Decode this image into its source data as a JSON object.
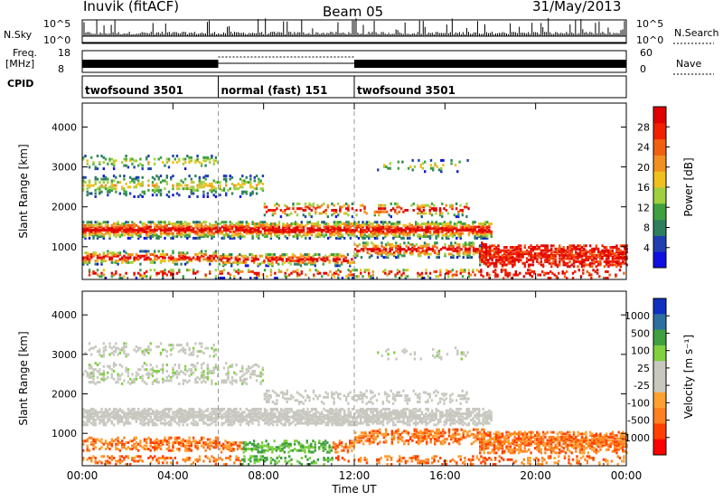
{
  "header": {
    "title": "Inuvik (fitACF)",
    "beam": "Beam 05",
    "date": "31/May/2013"
  },
  "strip_labels": {
    "nsky": "N.Sky",
    "nsky_top": "10^5",
    "nsky_bottom": "10^0",
    "nsearch": "N.Search",
    "nsearch_top": "10^5",
    "nsearch_bottom": "10^0",
    "freq": "Freq.",
    "freq_unit": "[MHz]",
    "freq_top": "18",
    "freq_bottom": "8",
    "nave": "Nave",
    "nave_top": "60",
    "nave_bottom": "0",
    "cpid": "CPID"
  },
  "cpid_segments": [
    {
      "label": "twofsound 3501",
      "start": 0,
      "end": 6
    },
    {
      "label": "normal (fast) 151",
      "start": 6,
      "end": 12
    },
    {
      "label": "twofsound 3501",
      "start": 12,
      "end": 24
    }
  ],
  "colors": {
    "power": [
      "#1010e0",
      "#1f3fb0",
      "#2f7f5f",
      "#40a040",
      "#a0d040",
      "#f0c020",
      "#f09020",
      "#f06010",
      "#f02000",
      "#e00000"
    ],
    "velocity": [
      "#ff0000",
      "#ff4000",
      "#ff8020",
      "#ffa030",
      "#c8c8c0",
      "#c8c8c0",
      "#80d040",
      "#40a040",
      "#2f6f9f",
      "#1030c0"
    ]
  },
  "chart_data": [
    {
      "type": "heatmap",
      "name": "power",
      "xlabel": "",
      "ylabel": "Slant Range [km]",
      "xlim": [
        0,
        24
      ],
      "ylim": [
        180,
        4600
      ],
      "yticks": [
        1000,
        2000,
        3000,
        4000
      ],
      "colorbar": {
        "label": "Power [dB]",
        "ticks": [
          4,
          8,
          12,
          16,
          20,
          24,
          28
        ],
        "range": [
          0,
          32
        ]
      },
      "grid": false,
      "boundaries_ut": [
        6,
        12
      ]
    },
    {
      "type": "heatmap",
      "name": "velocity",
      "xlabel": "Time UT",
      "ylabel": "Slant Range [km]",
      "xlim": [
        0,
        24
      ],
      "ylim": [
        180,
        4600
      ],
      "yticks": [
        1000,
        2000,
        3000,
        4000
      ],
      "xticks": [
        "00:00",
        "04:00",
        "08:00",
        "12:00",
        "16:00",
        "20:00",
        "00:00"
      ],
      "colorbar": {
        "label": "Velocity [m s⁻¹]",
        "ticks": [
          "1000",
          "500",
          "100",
          "25",
          "-25",
          "-100",
          "-500",
          "-1000"
        ]
      },
      "grid": false,
      "boundaries_ut": [
        6,
        12
      ]
    }
  ]
}
